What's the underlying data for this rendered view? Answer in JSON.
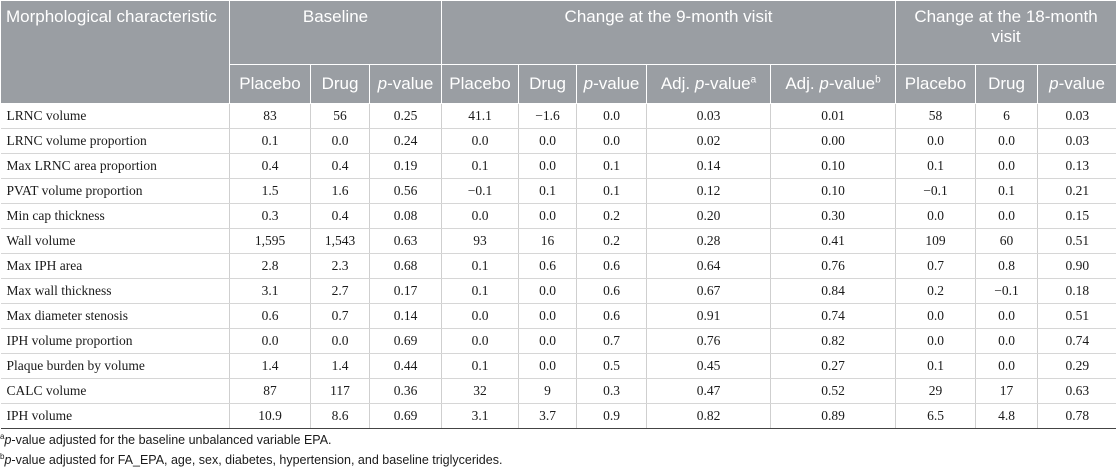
{
  "header": {
    "characteristic": "Morphological characteristic",
    "baseline": "Baseline",
    "change9": "Change at the 9-month visit",
    "change18": "Change at the 18-month visit",
    "placebo": "Placebo",
    "drug": "Drug",
    "p_value_p": "p",
    "p_value_rest": "-value",
    "adj_prefix": "Adj. ",
    "adj_a_mark": "a",
    "adj_b_mark": "b"
  },
  "rows": [
    {
      "label": "LRNC volume",
      "values": [
        "83",
        "56",
        "0.25",
        "41.1",
        "−1.6",
        "0.0",
        "0.03",
        "0.01",
        "58",
        "6",
        "0.03"
      ]
    },
    {
      "label": "LRNC volume proportion",
      "values": [
        "0.1",
        "0.0",
        "0.24",
        "0.0",
        "0.0",
        "0.0",
        "0.02",
        "0.00",
        "0.0",
        "0.0",
        "0.03"
      ]
    },
    {
      "label": "Max LRNC area proportion",
      "values": [
        "0.4",
        "0.4",
        "0.19",
        "0.1",
        "0.0",
        "0.1",
        "0.14",
        "0.10",
        "0.1",
        "0.0",
        "0.13"
      ]
    },
    {
      "label": "PVAT volume proportion",
      "values": [
        "1.5",
        "1.6",
        "0.56",
        "−0.1",
        "0.1",
        "0.1",
        "0.12",
        "0.10",
        "−0.1",
        "0.1",
        "0.21"
      ]
    },
    {
      "label": "Min cap thickness",
      "values": [
        "0.3",
        "0.4",
        "0.08",
        "0.0",
        "0.0",
        "0.2",
        "0.20",
        "0.30",
        "0.0",
        "0.0",
        "0.15"
      ]
    },
    {
      "label": "Wall volume",
      "values": [
        "1,595",
        "1,543",
        "0.63",
        "93",
        "16",
        "0.2",
        "0.28",
        "0.41",
        "109",
        "60",
        "0.51"
      ]
    },
    {
      "label": "Max IPH area",
      "values": [
        "2.8",
        "2.3",
        "0.68",
        "0.1",
        "0.6",
        "0.6",
        "0.64",
        "0.76",
        "0.7",
        "0.8",
        "0.90"
      ]
    },
    {
      "label": "Max wall thickness",
      "values": [
        "3.1",
        "2.7",
        "0.17",
        "0.1",
        "0.0",
        "0.6",
        "0.67",
        "0.84",
        "0.2",
        "−0.1",
        "0.18"
      ]
    },
    {
      "label": "Max diameter stenosis",
      "values": [
        "0.6",
        "0.7",
        "0.14",
        "0.0",
        "0.0",
        "0.6",
        "0.91",
        "0.74",
        "0.0",
        "0.0",
        "0.51"
      ]
    },
    {
      "label": "IPH volume proportion",
      "values": [
        "0.0",
        "0.0",
        "0.69",
        "0.0",
        "0.0",
        "0.7",
        "0.76",
        "0.82",
        "0.0",
        "0.0",
        "0.74"
      ]
    },
    {
      "label": "Plaque burden by volume",
      "values": [
        "1.4",
        "1.4",
        "0.44",
        "0.1",
        "0.0",
        "0.5",
        "0.45",
        "0.27",
        "0.1",
        "0.0",
        "0.29"
      ]
    },
    {
      "label": "CALC volume",
      "values": [
        "87",
        "117",
        "0.36",
        "32",
        "9",
        "0.3",
        "0.47",
        "0.52",
        "29",
        "17",
        "0.63"
      ]
    },
    {
      "label": "IPH volume",
      "values": [
        "10.9",
        "8.6",
        "0.69",
        "3.1",
        "3.7",
        "0.9",
        "0.82",
        "0.89",
        "6.5",
        "4.8",
        "0.78"
      ]
    }
  ],
  "footnotes": {
    "a_mark": "a",
    "a_p": "p",
    "a_text": "-value adjusted for the baseline unbalanced variable EPA.",
    "b_mark": "b",
    "b_p": "p",
    "b_text": "-value adjusted for FA_EPA, age, sex, diabetes, hypertension, and baseline triglycerides."
  }
}
